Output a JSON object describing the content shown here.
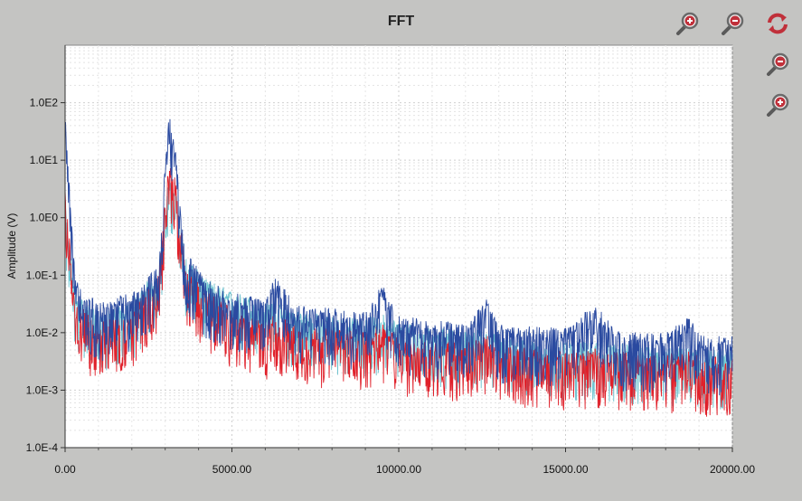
{
  "title": "FFT",
  "toolbar": {
    "top": [
      {
        "name": "zoom-in-x-icon",
        "icon": "zoom-in"
      },
      {
        "name": "zoom-out-x-icon",
        "icon": "zoom-out"
      },
      {
        "name": "reset-refresh-icon",
        "icon": "refresh"
      }
    ],
    "side": [
      {
        "name": "zoom-out-y-icon",
        "icon": "zoom-out"
      },
      {
        "name": "zoom-in-y-icon",
        "icon": "zoom-in"
      }
    ]
  },
  "colors": {
    "series_dark_blue": "#2a4aa0",
    "series_red": "#e0202a",
    "series_light_cyan": "#70c4d0",
    "icon_red": "#c0303a"
  },
  "chart_data": {
    "type": "line",
    "title": "FFT",
    "xlabel": "",
    "ylabel": "Amplitude (V)",
    "xlim": [
      0,
      20000
    ],
    "ylim": [
      0.0001,
      1000
    ],
    "yscale": "log",
    "grid": true,
    "xticks": [
      "0.00",
      "5000.00",
      "10000.00",
      "15000.00",
      "20000.00"
    ],
    "yticks": [
      "1.0E-4",
      "1.0E-3",
      "1.0E-2",
      "1.0E-1",
      "1.0E0",
      "1.0E1",
      "1.0E2"
    ],
    "series": [
      {
        "color": "#70c4d0",
        "x": [
          0,
          300,
          1000,
          2000,
          2800,
          3100,
          3300,
          3600,
          4200,
          5000,
          6000,
          7000,
          8000,
          9000,
          9500,
          10000,
          11000,
          12000,
          12700,
          13000,
          14000,
          15000,
          16000,
          17000,
          18000,
          19000,
          20000
        ],
        "y": [
          1.0,
          0.03,
          0.012,
          0.02,
          0.08,
          3.0,
          2.0,
          0.12,
          0.05,
          0.03,
          0.02,
          0.014,
          0.011,
          0.01,
          0.012,
          0.009,
          0.007,
          0.006,
          0.007,
          0.005,
          0.004,
          0.0038,
          0.004,
          0.0035,
          0.0032,
          0.003,
          0.0028
        ]
      },
      {
        "color": "#e0202a",
        "x": [
          0,
          300,
          1000,
          2000,
          2800,
          3100,
          3300,
          3600,
          4200,
          5000,
          6000,
          6300,
          7000,
          8000,
          9000,
          9500,
          10000,
          11000,
          12000,
          12700,
          13000,
          14000,
          15000,
          16000,
          17000,
          18000,
          18700,
          19000,
          20000
        ],
        "y": [
          2.0,
          0.02,
          0.008,
          0.015,
          0.06,
          5.0,
          3.0,
          0.08,
          0.03,
          0.015,
          0.009,
          0.012,
          0.0075,
          0.0065,
          0.006,
          0.008,
          0.0048,
          0.0042,
          0.0038,
          0.005,
          0.0034,
          0.003,
          0.0028,
          0.003,
          0.0025,
          0.0024,
          0.0028,
          0.0022,
          0.0021
        ]
      },
      {
        "color": "#2a4aa0",
        "x": [
          0,
          300,
          1000,
          2000,
          2800,
          3100,
          3300,
          3600,
          4200,
          5000,
          6000,
          6300,
          7000,
          8000,
          9000,
          9500,
          10000,
          11000,
          12000,
          12700,
          13000,
          14000,
          15000,
          15900,
          16500,
          17000,
          18000,
          18700,
          19000,
          20000
        ],
        "y": [
          40.0,
          0.05,
          0.018,
          0.03,
          0.08,
          40.0,
          10.0,
          0.15,
          0.05,
          0.028,
          0.022,
          0.06,
          0.018,
          0.015,
          0.013,
          0.04,
          0.011,
          0.0095,
          0.0085,
          0.025,
          0.0078,
          0.0072,
          0.0068,
          0.018,
          0.0062,
          0.0058,
          0.0055,
          0.011,
          0.0052,
          0.005
        ]
      }
    ]
  }
}
